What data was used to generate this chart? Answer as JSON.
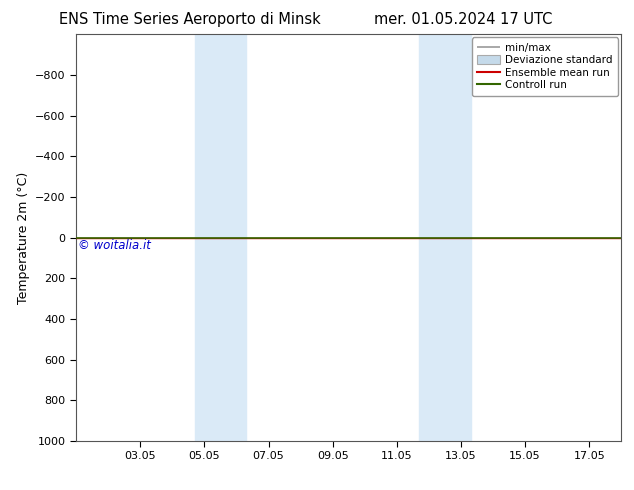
{
  "title_left": "ENS Time Series Aeroporto di Minsk",
  "title_right": "mer. 01.05.2024 17 UTC",
  "ylabel": "Temperature 2m (°C)",
  "watermark": "© woitalia.it",
  "watermark_color": "#0000cc",
  "ylim_bottom": 1000,
  "ylim_top": -1000,
  "yticks": [
    -800,
    -600,
    -400,
    -200,
    0,
    200,
    400,
    600,
    800,
    1000
  ],
  "xtick_labels": [
    "03.05",
    "05.05",
    "07.05",
    "09.05",
    "11.05",
    "13.05",
    "15.05",
    "17.05"
  ],
  "xtick_positions": [
    2,
    4,
    6,
    8,
    10,
    12,
    14,
    16
  ],
  "xlim": [
    0,
    17
  ],
  "night_bands": [
    {
      "start": 3.7,
      "end": 5.3
    },
    {
      "start": 10.7,
      "end": 12.3
    }
  ],
  "night_band_color": "#daeaf7",
  "control_run_y": 0,
  "control_run_color": "#336600",
  "ensemble_mean_color": "#cc0000",
  "minmax_color": "#999999",
  "std_color": "#c5daea",
  "legend_fontsize": 7.5,
  "background_color": "#ffffff",
  "title_fontsize": 10.5,
  "tick_fontsize": 8,
  "ylabel_fontsize": 9
}
